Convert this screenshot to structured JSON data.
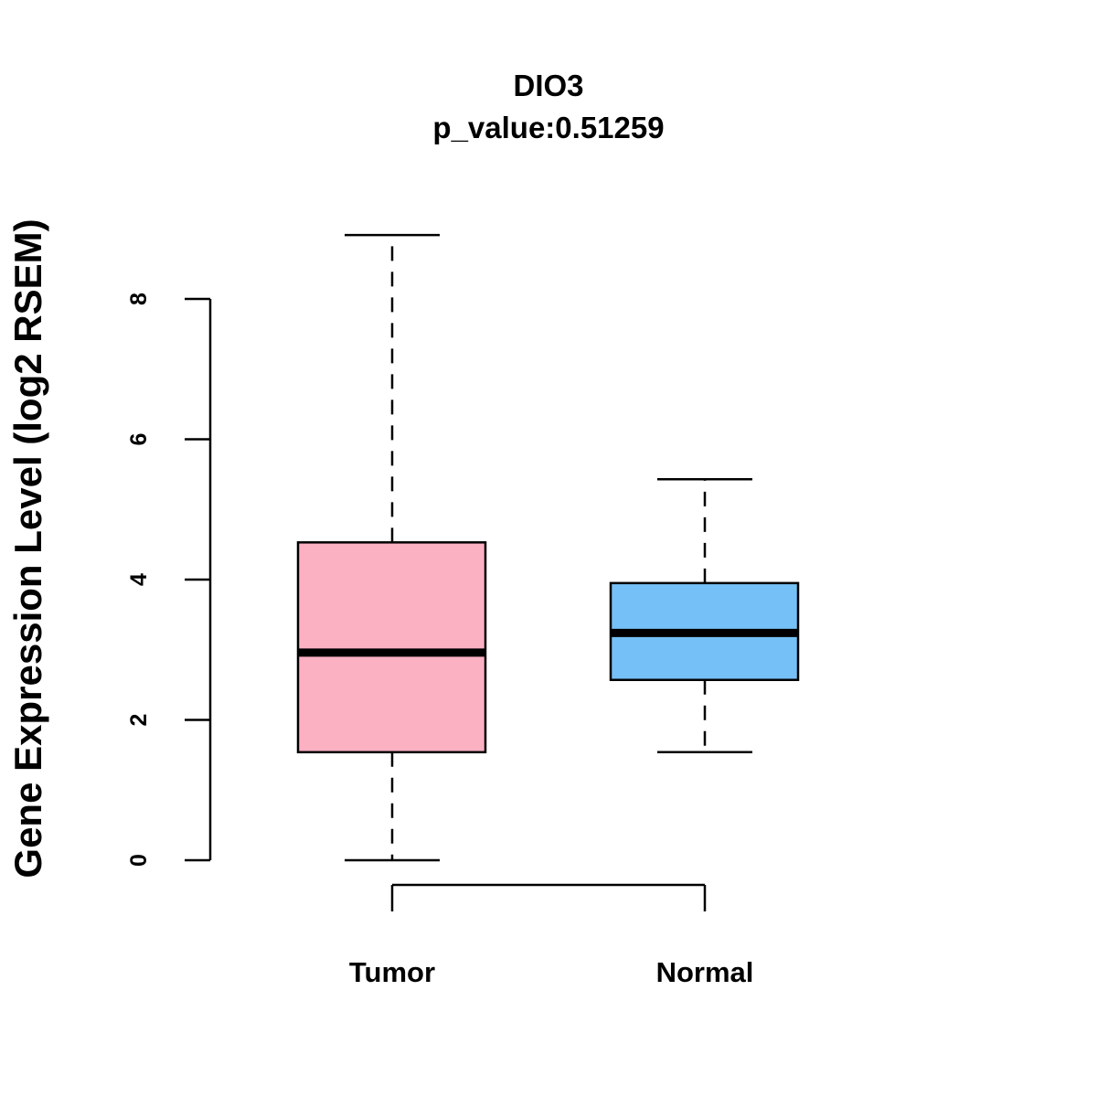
{
  "chart_data": {
    "type": "boxplot",
    "title": "DIO3",
    "subtitle": "p_value:0.51259",
    "xlabel": "",
    "ylabel": "Gene Expression Level (log2 RSEM)",
    "ylim": [
      0,
      9
    ],
    "yticks": [
      "0",
      "2",
      "4",
      "6",
      "8"
    ],
    "categories": [
      "Tumor",
      "Normal"
    ],
    "series": [
      {
        "name": "Tumor",
        "color": "#FCB1C3",
        "whisker_low": 0.0,
        "q1": 1.54,
        "median": 2.96,
        "q3": 4.53,
        "whisker_high": 8.91
      },
      {
        "name": "Normal",
        "color": "#75C0F7",
        "whisker_low": 1.54,
        "q1": 2.57,
        "median": 3.24,
        "q3": 3.95,
        "whisker_high": 5.43
      }
    ]
  }
}
